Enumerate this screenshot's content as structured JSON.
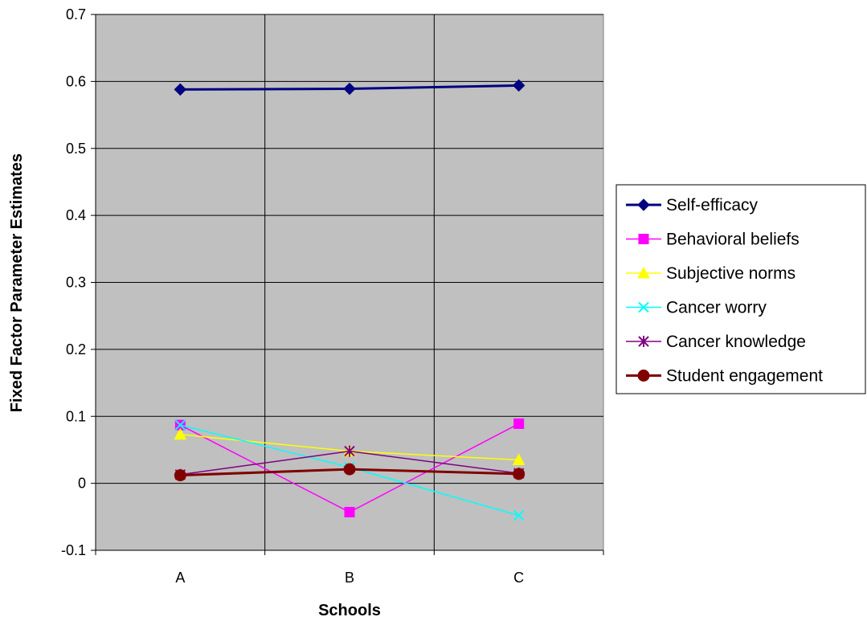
{
  "chart_data": {
    "type": "line",
    "title": "",
    "xlabel": "Schools",
    "ylabel": "Fixed Factor Parameter Estimates",
    "categories": [
      "A",
      "B",
      "C"
    ],
    "ylim": [
      -0.1,
      0.7
    ],
    "yticks": [
      "0.7",
      "0.6",
      "0.5",
      "0.4",
      "0.3",
      "0.2",
      "0.1",
      "0",
      "-0.1"
    ],
    "grid": true,
    "plot_background": "#c0c0c0",
    "legend_position": "right",
    "series": [
      {
        "name": "Self-efficacy",
        "values": [
          0.588,
          0.589,
          0.594
        ],
        "color": "#000080",
        "marker": "diamond"
      },
      {
        "name": "Behavioral beliefs",
        "values": [
          0.087,
          -0.043,
          0.089
        ],
        "color": "#ff00ff",
        "marker": "square"
      },
      {
        "name": "Subjective norms",
        "values": [
          0.073,
          0.048,
          0.035
        ],
        "color": "#ffff00",
        "marker": "triangle"
      },
      {
        "name": "Cancer worry",
        "values": [
          0.087,
          0.024,
          -0.048
        ],
        "color": "#00ffff",
        "marker": "x"
      },
      {
        "name": "Cancer knowledge",
        "values": [
          0.013,
          0.048,
          0.015
        ],
        "color": "#800080",
        "marker": "star"
      },
      {
        "name": "Student engagement",
        "values": [
          0.012,
          0.021,
          0.014
        ],
        "color": "#800000",
        "marker": "circle"
      }
    ]
  }
}
